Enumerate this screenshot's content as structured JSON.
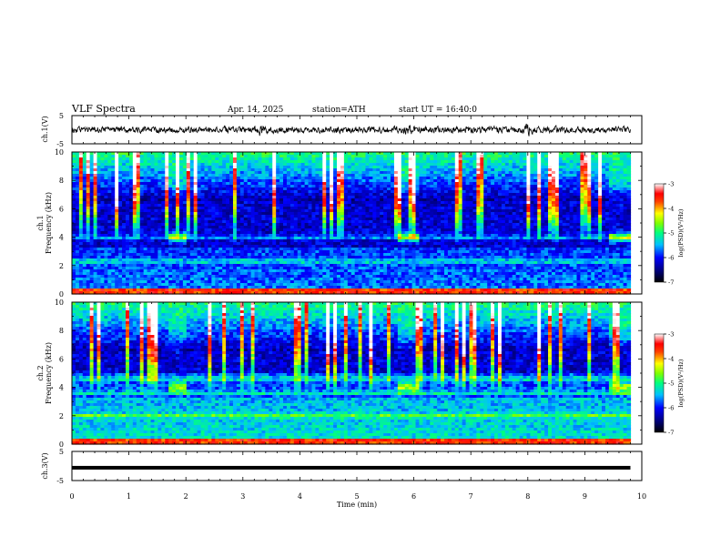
{
  "header": {
    "title": "VLF Spectra",
    "date": "Apr. 14, 2025",
    "station": "station=ATH",
    "start": "start UT = 16:40:0"
  },
  "chart_data": [
    {
      "type": "line",
      "panel": "ch1-waveform",
      "ylabel": "ch.1(V)",
      "ylim": [
        -5,
        5
      ],
      "ytick_labels": [
        "5",
        "-5"
      ],
      "x_range_min": [
        0,
        9.8
      ],
      "trace_mean_v": 0.0,
      "trace_noise_amplitude_v": 1.0,
      "bursts_min": [
        3.3,
        5.9,
        8.0
      ],
      "line_color": "#000000"
    },
    {
      "type": "heatmap",
      "panel": "ch1-spectrogram",
      "ylabel": "ch.1\nFrequency (kHz)",
      "ylim": [
        0,
        10
      ],
      "ytick_labels": [
        "0",
        "2",
        "4",
        "6",
        "8",
        "10"
      ],
      "x_range_min": [
        0,
        9.8
      ],
      "colorbar": {
        "label": "log(PSD)(V²/Hz)",
        "range": [
          -7,
          -3
        ],
        "tick_labels": [
          "-3",
          "-4",
          "-5",
          "-6",
          "-7"
        ]
      },
      "emission_patches_min": [
        1.75,
        5.8,
        9.5
      ],
      "description_bands_khz": [
        2.3,
        4.0
      ]
    },
    {
      "type": "heatmap",
      "panel": "ch2-spectrogram",
      "ylabel": "ch.2\nFrequency (kHz)",
      "ylim": [
        0,
        10
      ],
      "ytick_labels": [
        "0",
        "2",
        "4",
        "6",
        "8",
        "10"
      ],
      "x_range_min": [
        0,
        9.8
      ],
      "colorbar": {
        "label": "log(PSD)(V²/Hz)",
        "range": [
          -7,
          -3
        ],
        "tick_labels": [
          "-3",
          "-4",
          "-5",
          "-6",
          "-7"
        ]
      },
      "emission_patches_min": [
        1.75,
        5.8,
        9.5
      ],
      "description_bands_khz": [
        2.0,
        3.6,
        4.6
      ]
    },
    {
      "type": "line",
      "panel": "ch3-waveform",
      "ylabel": "ch.3(V)",
      "ylim": [
        -5,
        5
      ],
      "ytick_labels": [
        "5",
        "-5"
      ],
      "x_range_min": [
        0,
        9.8
      ],
      "trace_level_v": -0.6,
      "line_color": "#000000"
    }
  ],
  "x_axis": {
    "label": "Time (min)",
    "range": [
      0,
      10
    ],
    "tick_labels": [
      "0",
      "1",
      "2",
      "3",
      "4",
      "5",
      "6",
      "7",
      "8",
      "9",
      "10"
    ]
  }
}
